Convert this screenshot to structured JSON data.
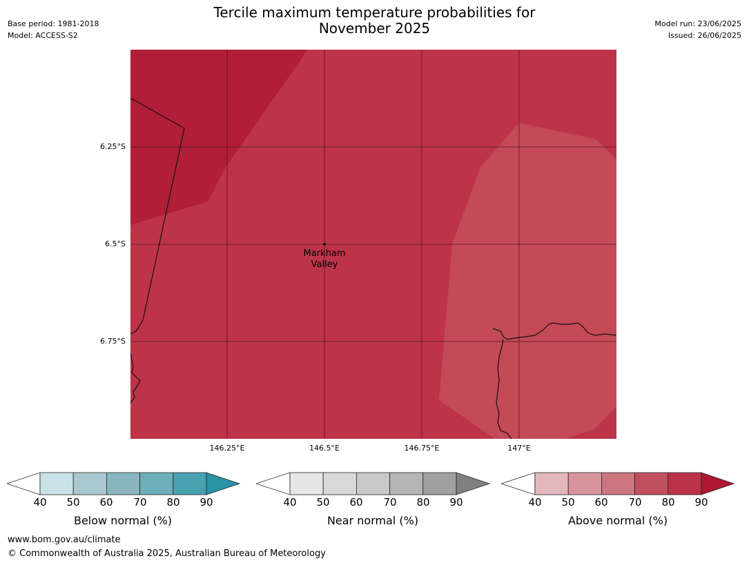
{
  "header": {
    "title_line1": "Tercile maximum temperature probabilities for",
    "title_line2": "November 2025",
    "base_period": "Base period: 1981-2018",
    "model": "Model: ACCESS-S2",
    "model_run": "Model run: 23/06/2025",
    "issued": "Issued: 26/06/2025"
  },
  "map": {
    "lat_labels": [
      "6.25°S",
      "6.5°S",
      "6.75°S"
    ],
    "lon_labels": [
      "146.25°E",
      "146.5°E",
      "146.75°E",
      "147°E"
    ],
    "place": {
      "name_line1": "Markham",
      "name_line2": "Valley"
    },
    "zone_colors": {
      "dark": "#b11e38",
      "mid": "#bd3449",
      "light": "#c34a56"
    }
  },
  "colorbars": [
    {
      "label": "Below normal (%)",
      "ticks": [
        "40",
        "50",
        "60",
        "70",
        "80",
        "90"
      ],
      "colors": [
        "#ffffff",
        "#c9e2e7",
        "#a8c9cf",
        "#89b5c0",
        "#6caeba",
        "#47a1b0",
        "#2a92a3"
      ]
    },
    {
      "label": "Near normal (%)",
      "ticks": [
        "40",
        "50",
        "60",
        "70",
        "80",
        "90"
      ],
      "colors": [
        "#ffffff",
        "#e6e6e6",
        "#d8d8d8",
        "#c9c9c9",
        "#b5b5b5",
        "#a0a0a0",
        "#808080"
      ]
    },
    {
      "label": "Above normal (%)",
      "ticks": [
        "40",
        "50",
        "60",
        "70",
        "80",
        "90"
      ],
      "colors": [
        "#ffffff",
        "#e3b8bd",
        "#d8949c",
        "#cb757e",
        "#c24f5f",
        "#bb3249",
        "#ad1732"
      ]
    }
  ],
  "footer": {
    "url": "www.bom.gov.au/climate",
    "copyright": "© Commonwealth of Australia 2025, Australian Bureau of Meteorology"
  }
}
